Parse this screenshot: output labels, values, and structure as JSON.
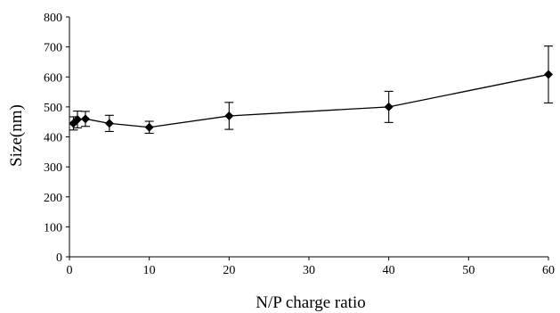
{
  "chart_data": {
    "type": "line",
    "title": "",
    "xlabel": "N/P charge ratio",
    "ylabel": "Size(nm)",
    "xlim": [
      0,
      60
    ],
    "ylim": [
      0,
      800
    ],
    "xticks": [
      0,
      10,
      20,
      30,
      40,
      50,
      60
    ],
    "yticks": [
      0,
      100,
      200,
      300,
      400,
      500,
      600,
      700,
      800
    ],
    "grid": false,
    "legend": "none",
    "marker": "diamond",
    "color": "#000000",
    "series": [
      {
        "x": [
          0.5,
          1,
          2,
          5,
          10,
          20,
          40,
          60
        ],
        "y": [
          445,
          458,
          460,
          445,
          432,
          470,
          500,
          608
        ],
        "error": [
          22,
          28,
          25,
          27,
          20,
          45,
          52,
          95
        ]
      }
    ]
  }
}
